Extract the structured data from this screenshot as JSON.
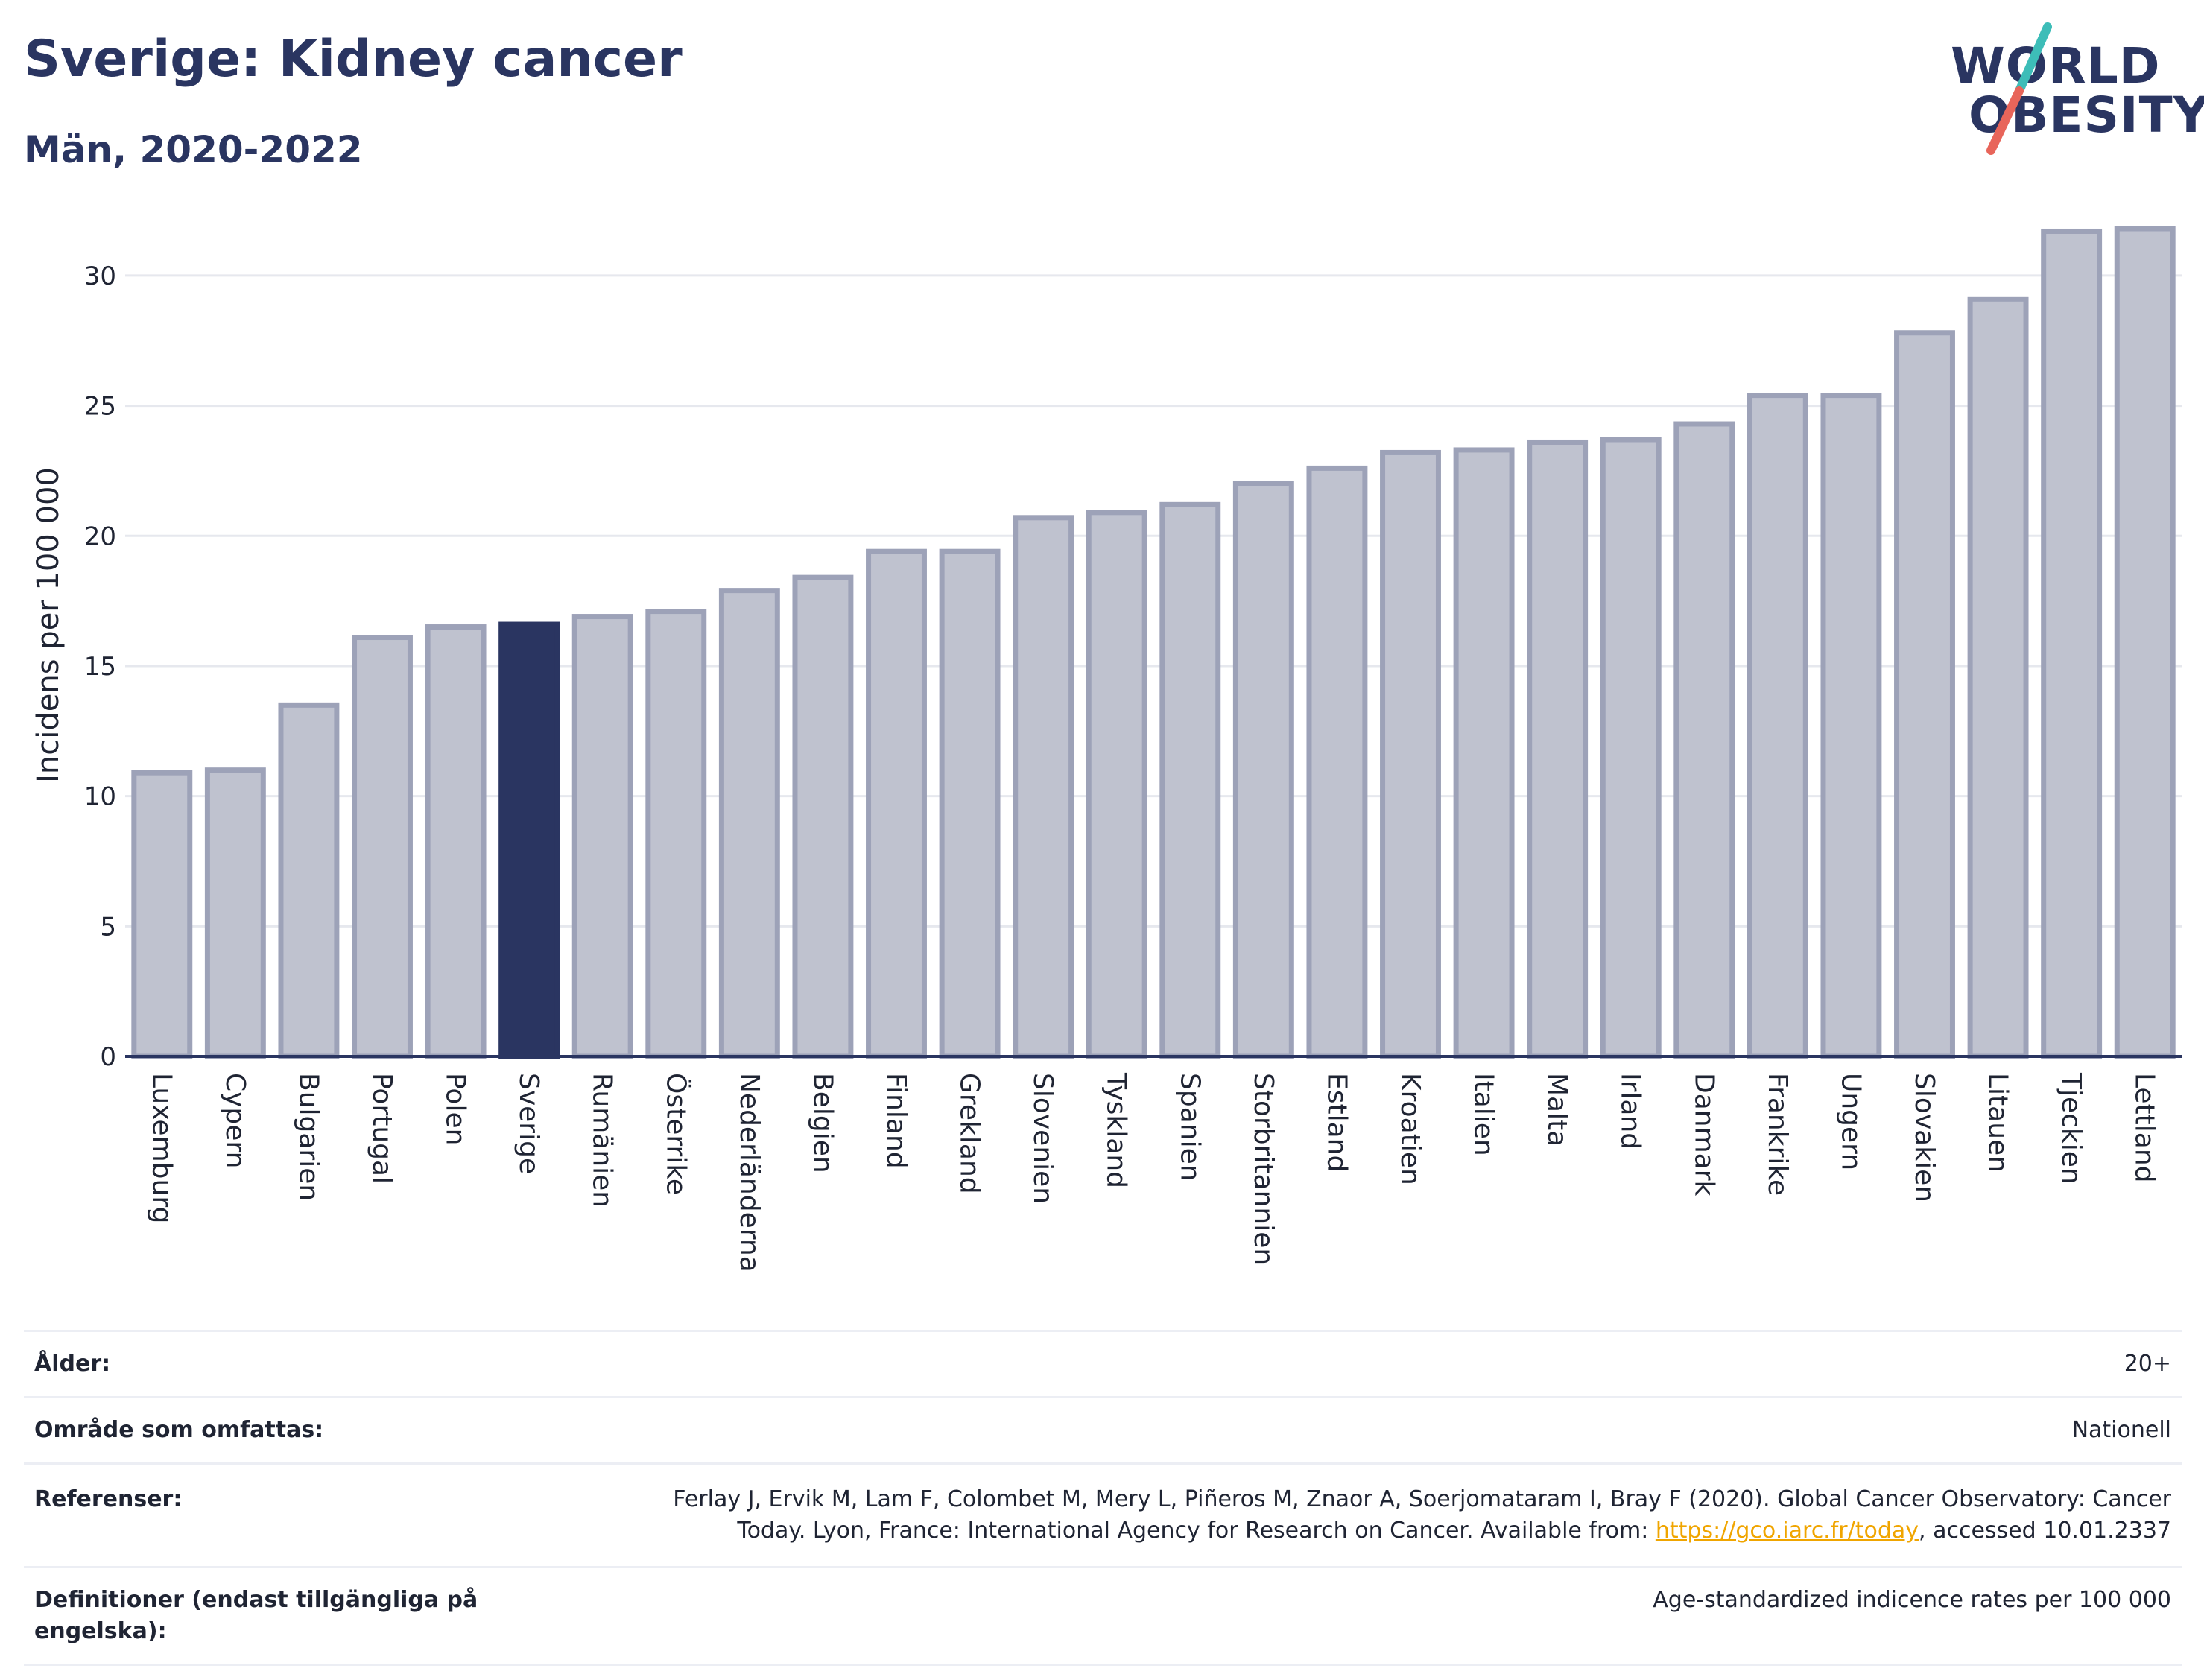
{
  "header": {
    "title": "Sverige: Kidney cancer",
    "subtitle": "Män, 2020-2022"
  },
  "logo": {
    "line1": "WORLD",
    "line2": "OBESITY",
    "accent_teal": "#3dbdb8",
    "accent_red": "#e8655a"
  },
  "chart_data": {
    "type": "bar",
    "title": "Sverige: Kidney cancer",
    "subtitle": "Män, 2020-2022",
    "xlabel": "",
    "ylabel": "Incidens per 100 000",
    "ylim": [
      0,
      32
    ],
    "yticks": [
      0,
      5,
      10,
      15,
      20,
      25,
      30
    ],
    "grid": true,
    "highlight": "Sverige",
    "colors": {
      "bar_fill": "#bfc2cf",
      "bar_stroke": "#9da2b8",
      "highlight": "#2a3561",
      "grid": "#e6e8ee",
      "axis": "#2a3561"
    },
    "categories": [
      "Luxemburg",
      "Cypern",
      "Bulgarien",
      "Portugal",
      "Polen",
      "Sverige",
      "Rumänien",
      "Österrike",
      "Nederländerna",
      "Belgien",
      "Finland",
      "Grekland",
      "Slovenien",
      "Tyskland",
      "Spanien",
      "Storbritannien",
      "Estland",
      "Kroatien",
      "Italien",
      "Malta",
      "Irland",
      "Danmark",
      "Frankrike",
      "Ungern",
      "Slovakien",
      "Litauen",
      "Tjeckien",
      "Lettland"
    ],
    "values": [
      10.9,
      11.0,
      13.5,
      16.1,
      16.5,
      16.6,
      16.9,
      17.1,
      17.9,
      18.4,
      19.4,
      19.4,
      20.7,
      20.9,
      21.2,
      22.0,
      22.6,
      23.2,
      23.3,
      23.6,
      23.7,
      24.3,
      25.4,
      25.4,
      27.8,
      29.1,
      31.7,
      31.8
    ]
  },
  "info": {
    "age_label": "Ålder:",
    "age_value": "20+",
    "coverage_label": "Område som omfattas:",
    "coverage_value": "Nationell",
    "refs_label": "Referenser:",
    "refs_line1": "Ferlay J, Ervik M, Lam F, Colombet M, Mery L, Piñeros M, Znaor A, Soerjomataram I, Bray F (2020). Global Cancer Observatory: Cancer",
    "refs_line2_pre": "Today. Lyon, France: International Agency for Research on Cancer. Available from: ",
    "refs_link": "https://gco.iarc.fr/today",
    "refs_line2_post": ", accessed 10.01.2337",
    "def_label": "Definitioner (endast tillgängliga på engelska):",
    "def_value": "Age-standardized indicence rates per 100 000"
  }
}
